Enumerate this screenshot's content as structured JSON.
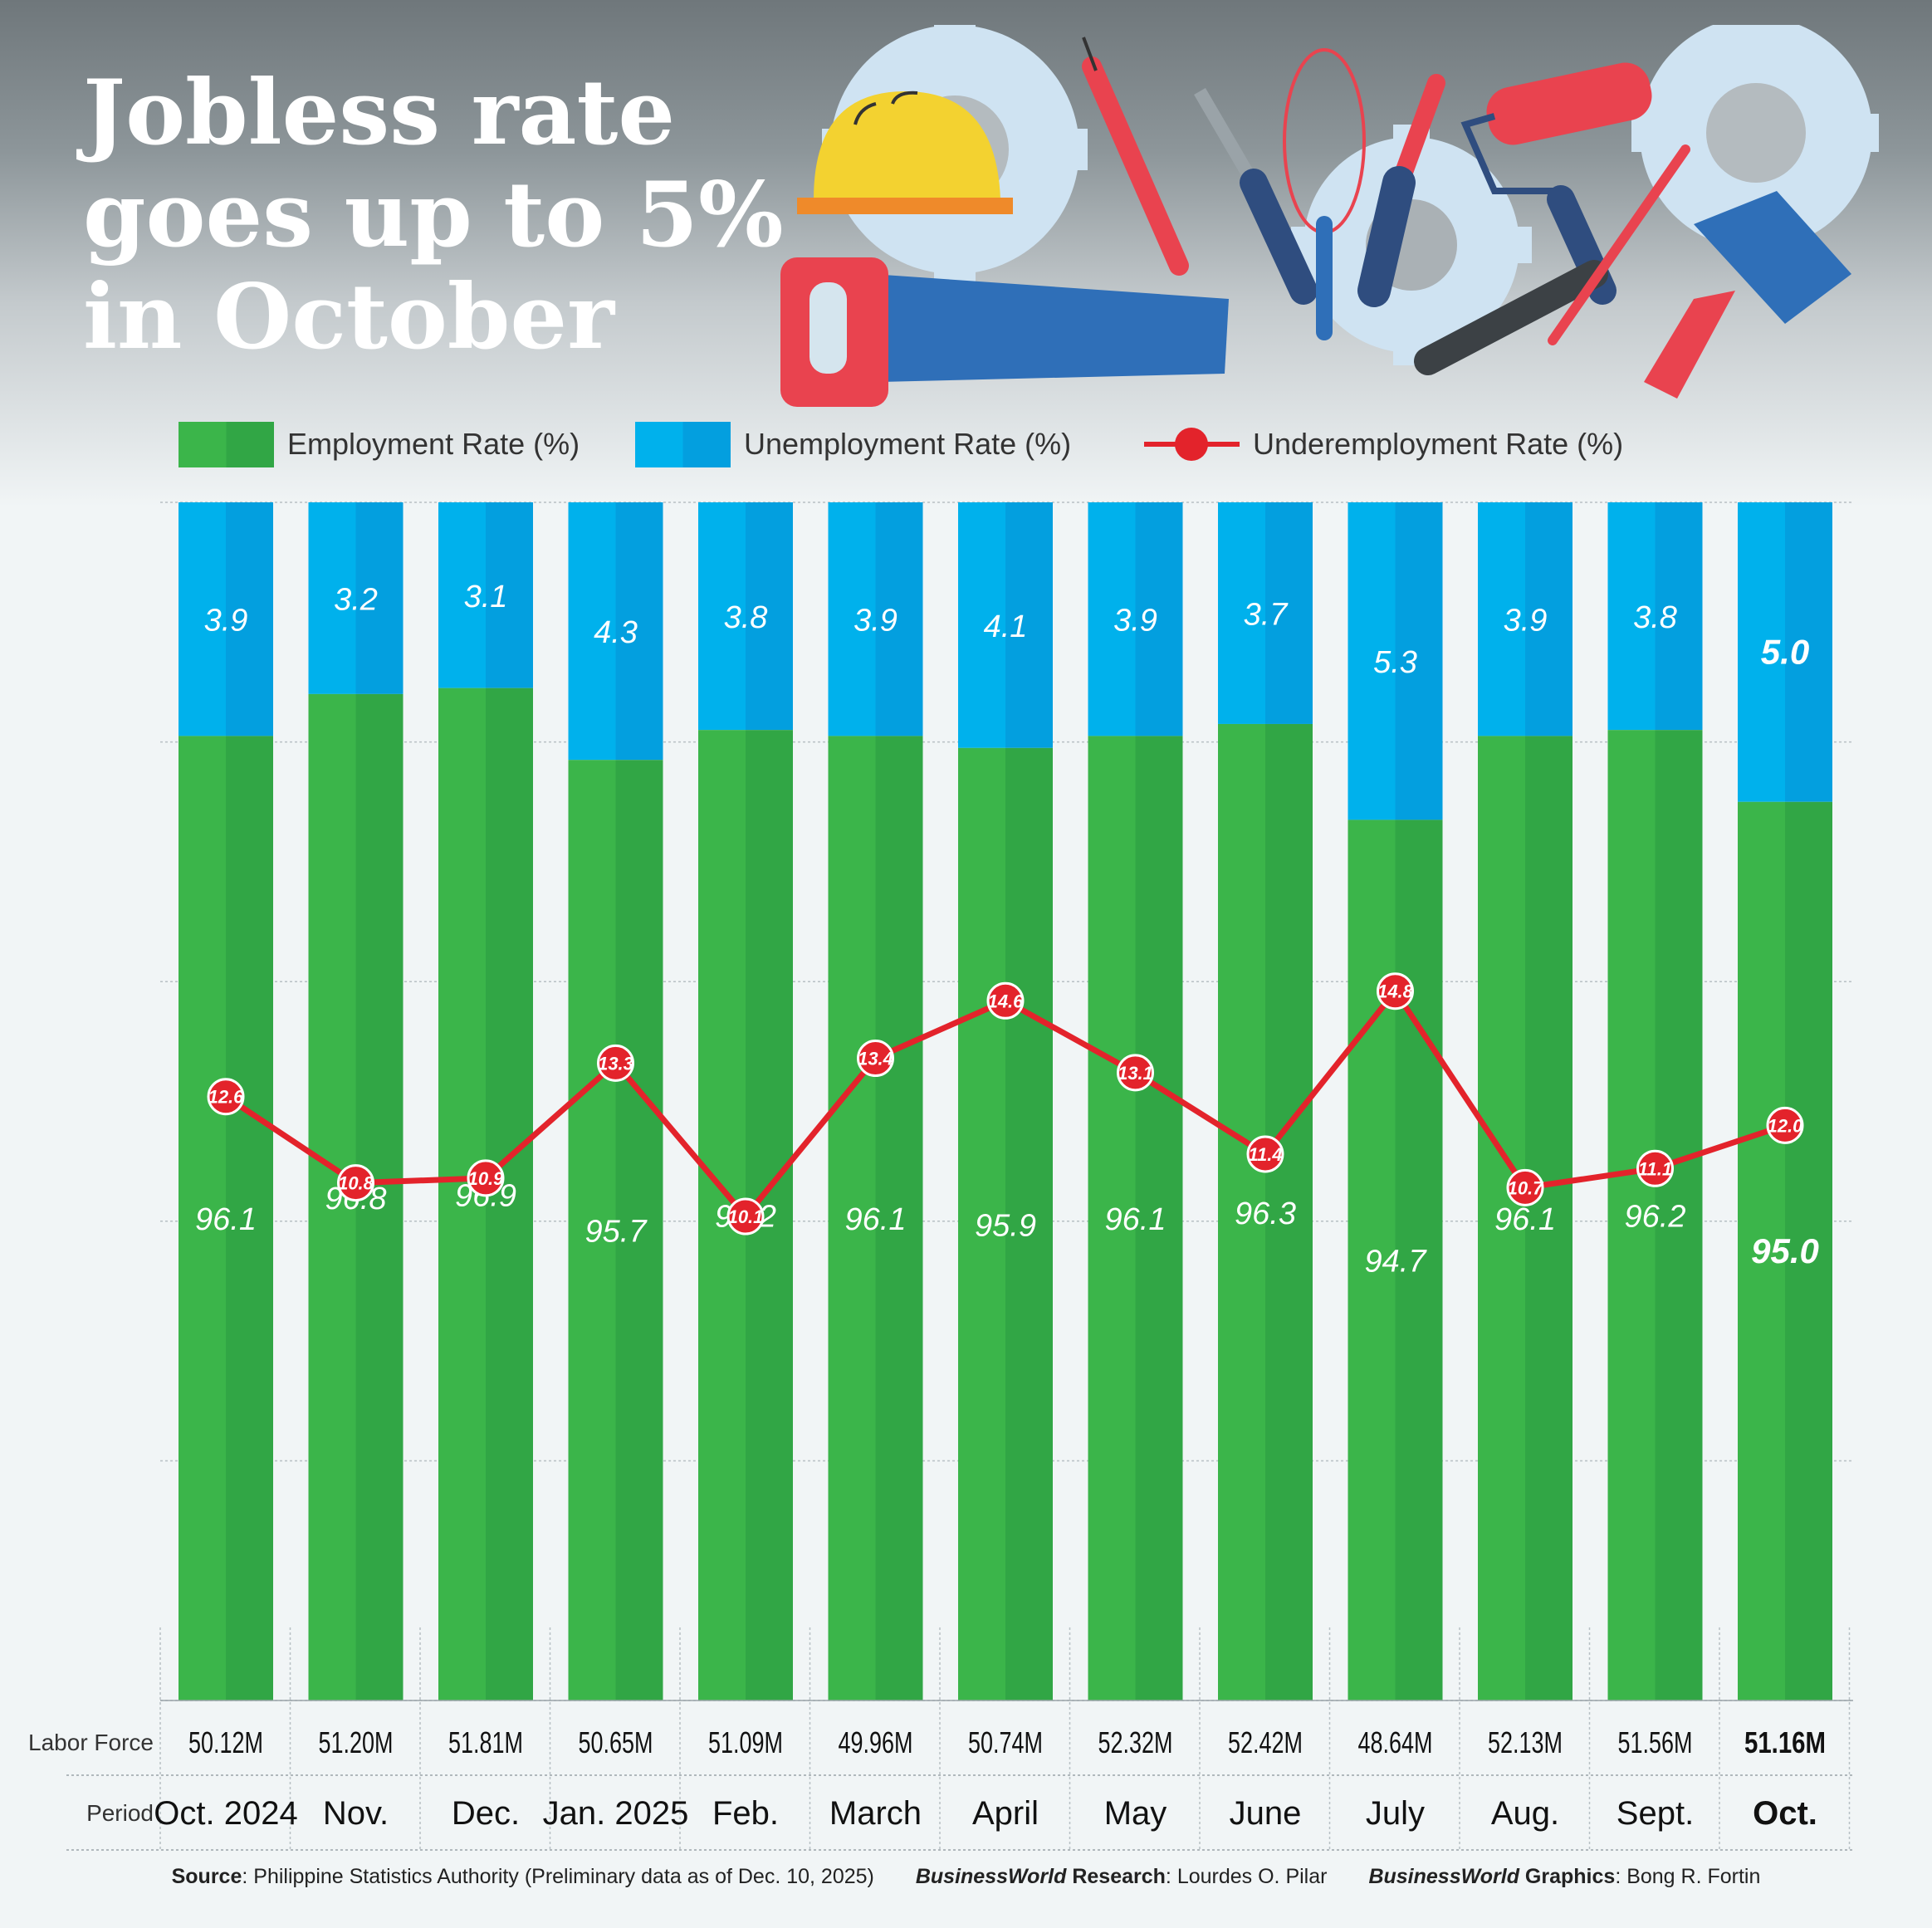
{
  "title": {
    "line1": "Jobless rate",
    "line2": "goes up to 5%",
    "line3": "in October"
  },
  "legend": {
    "employment": "Employment  Rate (%)",
    "unemployment": "Unemployment Rate (%)",
    "underemployment": "Underemployment Rate (%)"
  },
  "colors": {
    "employment": "#3bb54a",
    "employment_dark": "#31a645",
    "unemployment": "#00b1ec",
    "unemployment_dark": "#039fdf",
    "underemployment": "#e3232b"
  },
  "row_labels": {
    "labor_force": "Labor Force",
    "period": "Period"
  },
  "illustration": [
    "hard-hat-icon",
    "hand-saw-icon",
    "syringe-icon",
    "screwdriver-icon",
    "whisk-icon",
    "paint-roller-icon",
    "wrench-icon",
    "paintbrush-icon",
    "gear-icon"
  ],
  "chart_data": {
    "type": "bar",
    "stacked": true,
    "categories": [
      "Oct. 2024",
      "Nov.",
      "Dec.",
      "Jan. 2025",
      "Feb.",
      "March",
      "April",
      "May",
      "June",
      "July",
      "Aug.",
      "Sept.",
      "Oct."
    ],
    "series": [
      {
        "name": "Employment  Rate (%)",
        "type": "bar",
        "values": [
          "96.1",
          "96.8",
          "96.9",
          "95.7",
          "96.2",
          "96.1",
          "95.9",
          "96.1",
          "96.3",
          "94.7",
          "96.1",
          "96.2",
          "95.0"
        ]
      },
      {
        "name": "Unemployment Rate (%)",
        "type": "bar",
        "values": [
          "3.9",
          "3.2",
          "3.1",
          "4.3",
          "3.8",
          "3.9",
          "4.1",
          "3.9",
          "3.7",
          "5.3",
          "3.9",
          "3.8",
          "5.0"
        ]
      },
      {
        "name": "Underemployment Rate (%)",
        "type": "line",
        "values": [
          "12.6",
          "10.8",
          "10.9",
          "13.3",
          "10.1",
          "13.4",
          "14.6",
          "13.1",
          "11.4",
          "14.8",
          "10.7",
          "11.1",
          "12.0"
        ]
      }
    ],
    "labor_force": [
      "50.12M",
      "51.20M",
      "51.81M",
      "50.65M",
      "51.09M",
      "49.96M",
      "50.74M",
      "52.32M",
      "52.42M",
      "48.64M",
      "52.13M",
      "51.56M",
      "51.16M"
    ],
    "highlight_last": true,
    "grid": true,
    "legend_position": "top"
  },
  "footer": {
    "source_label": "Source",
    "source_text": ": Philippine Statistics Authority (Preliminary data as of Dec. 10, 2025)",
    "research_brand": "BusinessWorld",
    "research_label": " Research",
    "research_text": ": Lourdes O. Pilar",
    "graphics_brand": "BusinessWorld",
    "graphics_label": " Graphics",
    "graphics_text": ": Bong R. Fortin"
  }
}
